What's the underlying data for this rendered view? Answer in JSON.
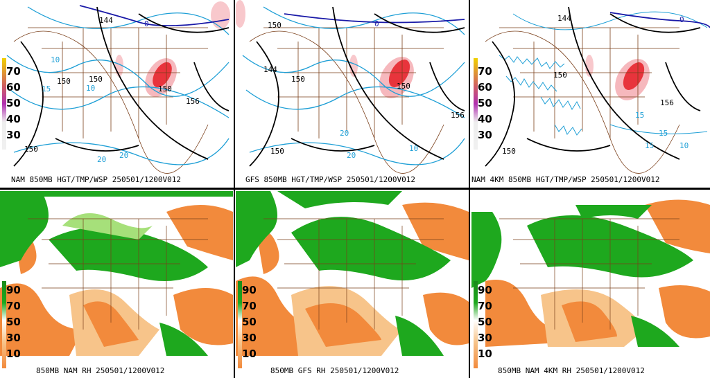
{
  "panels": [
    {
      "caption": "NAM 850MB HGT/TMP/WSP 250501/1200V012",
      "type": "wind",
      "scale_labels": [
        "70",
        "60",
        "50",
        "40",
        "30"
      ],
      "contour_labels": [
        "144",
        "0",
        "150",
        "150",
        "156",
        "10",
        "150",
        "150",
        "20",
        "20",
        "15",
        "10"
      ]
    },
    {
      "caption": "GFS 850MB HGT/TMP/WSP 250501/1200V012",
      "type": "wind",
      "scale_labels": [],
      "contour_labels": [
        "150",
        "0",
        "150",
        "150",
        "156",
        "150",
        "20",
        "20",
        "10",
        "144"
      ]
    },
    {
      "caption": "NAM 4KM 850MB HGT/TMP/WSP 250501/1200V012",
      "type": "wind",
      "scale_labels": [
        "70",
        "60",
        "50",
        "40",
        "30"
      ],
      "contour_labels": [
        "144",
        "0",
        "150",
        "156",
        "150",
        "15",
        "15",
        "15",
        "10"
      ]
    },
    {
      "caption": "850MB NAM RH 250501/1200V012",
      "type": "rh",
      "scale_labels": [
        "90",
        "70",
        "50",
        "30",
        "10"
      ]
    },
    {
      "caption": "850MB GFS RH 250501/1200V012",
      "type": "rh",
      "scale_labels": [
        "90",
        "70",
        "50",
        "30",
        "10"
      ]
    },
    {
      "caption": "850MB NAM 4KM RH 250501/1200V012",
      "type": "rh",
      "scale_labels": [
        "90",
        "70",
        "50",
        "30",
        "10"
      ]
    }
  ],
  "colors": {
    "height_contour": "#000000",
    "temp_contour": "#1e9fd6",
    "freezing_line": "#1a1aa8",
    "borders": "#7a3f1a",
    "wind_fill": "#e8343c",
    "rh_moist": "#1ea81e",
    "rh_moist_light": "#a6e07a",
    "rh_dry": "#f28a3c",
    "rh_dry_light": "#f7c48a"
  }
}
